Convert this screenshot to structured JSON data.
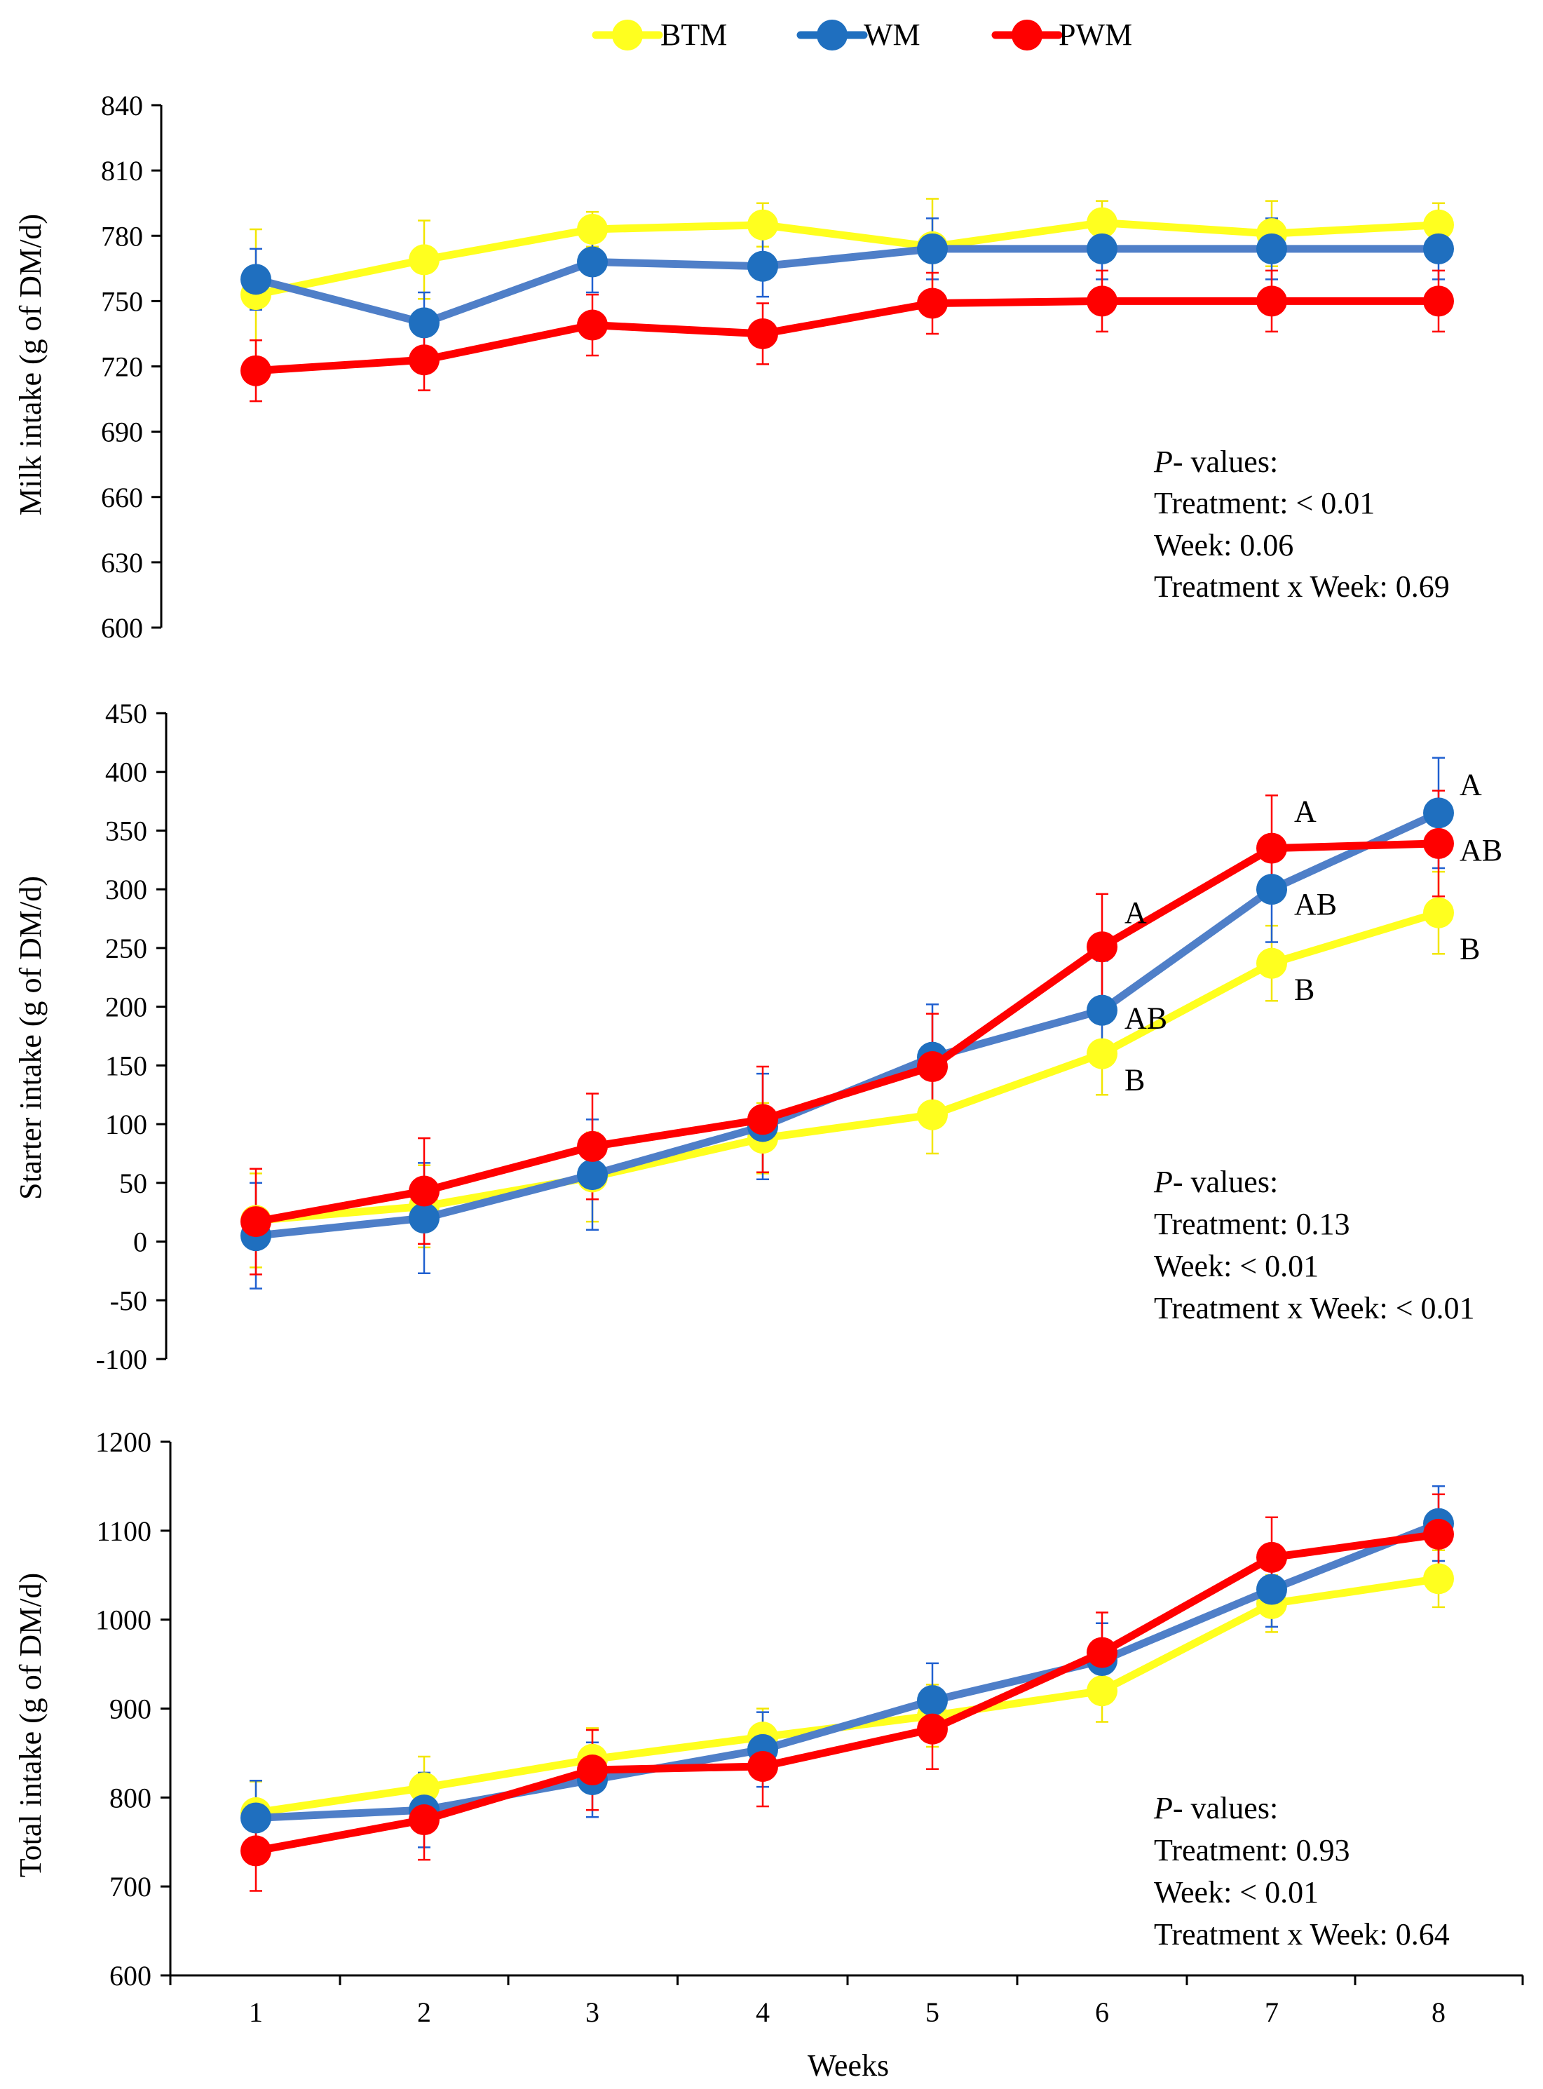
{
  "legend": [
    {
      "name": "BTM",
      "color": "#ffff1f"
    },
    {
      "name": "WM",
      "color": "#1f6fbf"
    },
    {
      "name": "PWM",
      "color": "#ff0000"
    }
  ],
  "series_colors": {
    "BTM": {
      "line": "#ffff1f",
      "marker": "#ffff1f",
      "error": "#f2e600"
    },
    "WM": {
      "line": "#4f7fc8",
      "marker": "#1f6fbf",
      "error": "#2060d0"
    },
    "PWM": {
      "line": "#ff0000",
      "marker": "#ff0000",
      "error": "#ff0000"
    }
  },
  "chart_data": [
    {
      "type": "line",
      "title": "",
      "xlabel": "",
      "ylabel": "Milk intake (g of DM/d)",
      "categories": [
        "1",
        "2",
        "3",
        "4",
        "5",
        "6",
        "7",
        "8"
      ],
      "ylim": [
        600,
        840
      ],
      "yticks": [
        840,
        810,
        780,
        750,
        720,
        690,
        660,
        630,
        600
      ],
      "grid": false,
      "series": [
        {
          "name": "BTM",
          "values": [
            753,
            769,
            783,
            785,
            775,
            786,
            781,
            785
          ],
          "errors": [
            30,
            18,
            8,
            10,
            22,
            10,
            15,
            10
          ]
        },
        {
          "name": "WM",
          "values": [
            760,
            740,
            768,
            766,
            774,
            774,
            774,
            774
          ],
          "errors": [
            14,
            14,
            14,
            14,
            14,
            14,
            14,
            14
          ]
        },
        {
          "name": "PWM",
          "values": [
            718,
            723,
            739,
            735,
            749,
            750,
            750,
            750
          ],
          "errors": [
            14,
            14,
            14,
            14,
            14,
            14,
            14,
            14
          ]
        }
      ],
      "annotations": [],
      "pvalues": {
        "label": "P",
        "label_rest": "- values:",
        "lines": [
          "Treatment: < 0.01",
          "Week: 0.06",
          "Treatment x Week: 0.69"
        ]
      }
    },
    {
      "type": "line",
      "title": "",
      "xlabel": "",
      "ylabel": "Starter intake (g of DM/d)",
      "categories": [
        "1",
        "2",
        "3",
        "4",
        "5",
        "6",
        "7",
        "8"
      ],
      "ylim": [
        -100,
        450
      ],
      "yticks": [
        450,
        400,
        350,
        300,
        250,
        200,
        150,
        100,
        50,
        0,
        -50,
        -100
      ],
      "grid": false,
      "series": [
        {
          "name": "BTM",
          "values": [
            18,
            30,
            55,
            88,
            108,
            160,
            237,
            280
          ],
          "errors": [
            40,
            35,
            38,
            30,
            33,
            35,
            32,
            35
          ]
        },
        {
          "name": "WM",
          "values": [
            5,
            20,
            57,
            98,
            157,
            197,
            300,
            365
          ],
          "errors": [
            45,
            47,
            47,
            45,
            45,
            42,
            45,
            47
          ]
        },
        {
          "name": "PWM",
          "values": [
            17,
            43,
            81,
            104,
            149,
            251,
            335,
            339
          ],
          "errors": [
            45,
            45,
            45,
            45,
            45,
            45,
            45,
            45
          ]
        }
      ],
      "annotations": [
        {
          "week": "6",
          "series": "PWM",
          "text": "A"
        },
        {
          "week": "6",
          "series": "WM",
          "text": "AB"
        },
        {
          "week": "6",
          "series": "BTM",
          "text": "B"
        },
        {
          "week": "7",
          "series": "PWM",
          "text": "A"
        },
        {
          "week": "7",
          "series": "WM",
          "text": "AB"
        },
        {
          "week": "7",
          "series": "BTM",
          "text": "B"
        },
        {
          "week": "8",
          "series": "WM",
          "text": "A"
        },
        {
          "week": "8",
          "series": "PWM",
          "text": "AB"
        },
        {
          "week": "8",
          "series": "BTM",
          "text": "B"
        }
      ],
      "pvalues": {
        "label": "P",
        "label_rest": "- values:",
        "lines": [
          "Treatment: 0.13",
          "Week: < 0.01",
          "Treatment x Week: < 0.01"
        ]
      }
    },
    {
      "type": "line",
      "title": "",
      "xlabel": "Weeks",
      "ylabel": "Total intake (g of DM/d)",
      "categories": [
        "1",
        "2",
        "3",
        "4",
        "5",
        "6",
        "7",
        "8"
      ],
      "ylim": [
        600,
        1200
      ],
      "yticks": [
        1200,
        1100,
        1000,
        900,
        800,
        700,
        600
      ],
      "grid": false,
      "series": [
        {
          "name": "BTM",
          "values": [
            783,
            811,
            843,
            868,
            892,
            920,
            1018,
            1046
          ],
          "errors": [
            35,
            35,
            35,
            32,
            35,
            35,
            32,
            32
          ]
        },
        {
          "name": "WM",
          "values": [
            777,
            786,
            820,
            854,
            909,
            954,
            1034,
            1108
          ],
          "errors": [
            42,
            42,
            42,
            42,
            42,
            42,
            42,
            42
          ]
        },
        {
          "name": "PWM",
          "values": [
            740,
            775,
            831,
            835,
            877,
            963,
            1070,
            1096
          ],
          "errors": [
            45,
            45,
            45,
            45,
            45,
            45,
            45,
            45
          ]
        }
      ],
      "annotations": [],
      "pvalues": {
        "label": "P",
        "label_rest": "- values:",
        "lines": [
          "Treatment: 0.93",
          "Week: < 0.01",
          "Treatment x Week: 0.64"
        ]
      }
    }
  ]
}
